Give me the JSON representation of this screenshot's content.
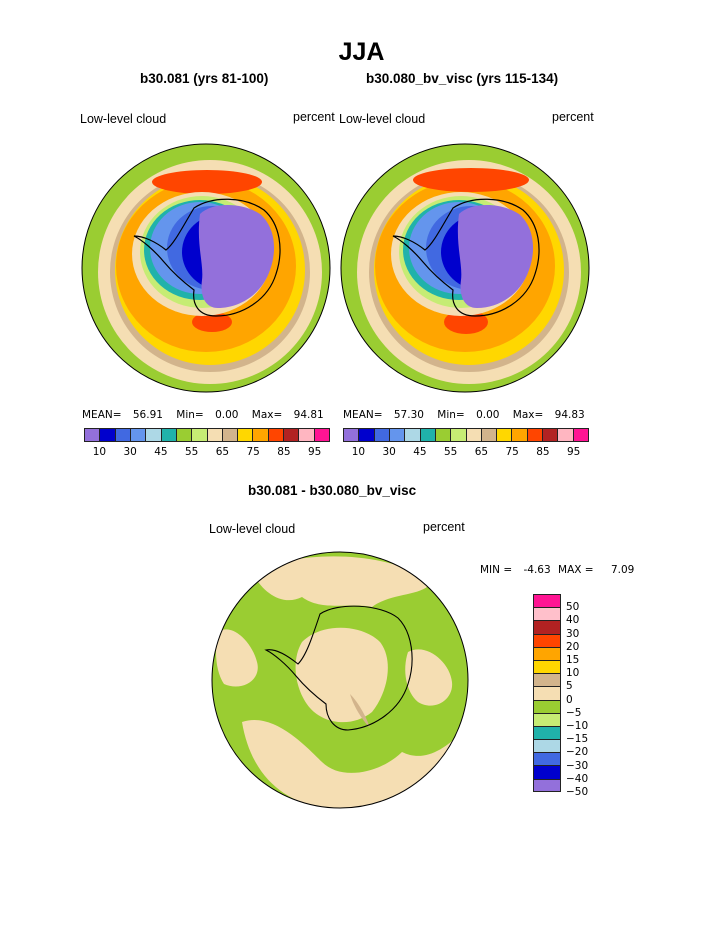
{
  "page": {
    "title": "JJA",
    "diff_title": "b30.081 - b30.080_bv_visc"
  },
  "colors": {
    "field_palette": [
      "#9370db",
      "#0000cd",
      "#4169e1",
      "#6495ed",
      "#add8e6",
      "#20b2aa",
      "#9acd32",
      "#c6ec74",
      "#f5deb3",
      "#d2b48c",
      "#ffd700",
      "#ffa500",
      "#ff4500",
      "#b22222",
      "#ffb6c1",
      "#ff1493"
    ],
    "diff_palette": [
      "#ff1493",
      "#ffc0cb",
      "#b22222",
      "#ff4500",
      "#ffa500",
      "#ffd700",
      "#d2b48c",
      "#f5deb3",
      "#9acd32",
      "#c6ec74",
      "#20b2aa",
      "#add8e6",
      "#4169e1",
      "#0000cd",
      "#9370db"
    ],
    "coastline": "#000000"
  },
  "chart_data": [
    {
      "type": "heatmap",
      "projection": "polar-stereographic-south",
      "title": "b30.081 (yrs 81-100)",
      "variable": "Low-level cloud",
      "units": "percent",
      "stats": {
        "mean_label": "MEAN=",
        "mean": "56.91",
        "min_label": "Min=",
        "min": "0.00",
        "max_label": "Max=",
        "max": "94.81"
      },
      "colorbar": {
        "orientation": "horizontal",
        "levels": [
          10,
          20,
          25,
          30,
          35,
          40,
          45,
          50,
          55,
          60,
          65,
          70,
          75,
          80,
          85,
          90,
          95
        ],
        "tick_labels": [
          "10",
          "30",
          "45",
          "55",
          "65",
          "75",
          "85",
          "95"
        ]
      }
    },
    {
      "type": "heatmap",
      "projection": "polar-stereographic-south",
      "title": "b30.080_bv_visc (yrs 115-134)",
      "variable": "Low-level cloud",
      "units": "percent",
      "stats": {
        "mean_label": "MEAN=",
        "mean": "57.30",
        "min_label": "Min=",
        "min": "0.00",
        "max_label": "Max=",
        "max": "94.83"
      },
      "colorbar": {
        "orientation": "horizontal",
        "levels": [
          10,
          20,
          25,
          30,
          35,
          40,
          45,
          50,
          55,
          60,
          65,
          70,
          75,
          80,
          85,
          90,
          95
        ],
        "tick_labels": [
          "10",
          "30",
          "45",
          "55",
          "65",
          "75",
          "85",
          "95"
        ]
      }
    },
    {
      "type": "heatmap",
      "projection": "polar-stereographic-south",
      "title": "b30.081 - b30.080_bv_visc",
      "variable": "Low-level cloud",
      "units": "percent",
      "stats": {
        "min_label": "MIN =",
        "min": "-4.63",
        "max_label": "MAX =",
        "max": "7.09"
      },
      "colorbar": {
        "orientation": "vertical",
        "levels": [
          50,
          40,
          30,
          20,
          15,
          10,
          5,
          0,
          -5,
          -10,
          -15,
          -20,
          -30,
          -40,
          -50
        ],
        "tick_labels": [
          "50",
          "40",
          "30",
          "20",
          "15",
          "10",
          "5",
          "0",
          "−5",
          "−10",
          "−15",
          "−20",
          "−30",
          "−40",
          "−50"
        ]
      }
    }
  ]
}
